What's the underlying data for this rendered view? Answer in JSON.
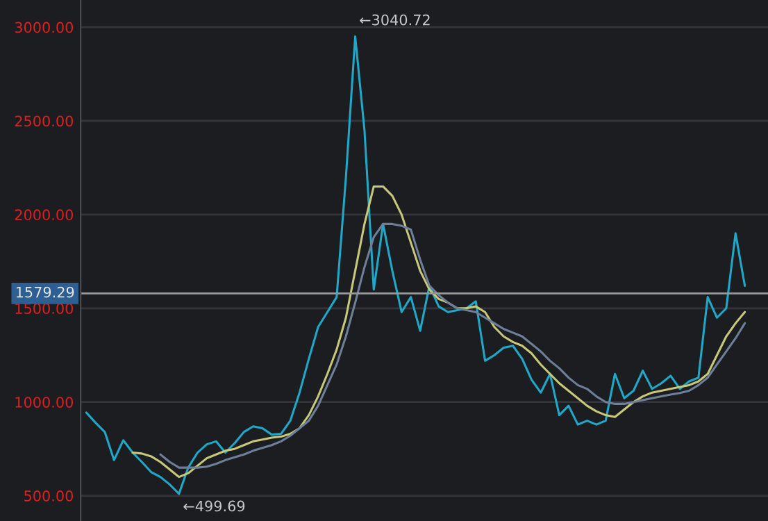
{
  "chart_data": {
    "type": "line",
    "categories": [
      null,
      null,
      null,
      null,
      null,
      null,
      null,
      null,
      null,
      null,
      null,
      null,
      null,
      null,
      null,
      null,
      null,
      null,
      null,
      null,
      null,
      null,
      null,
      null,
      null,
      null,
      null,
      null,
      null,
      null,
      null,
      null,
      null,
      null,
      null,
      null,
      null,
      null,
      null,
      null,
      null,
      null,
      null,
      null,
      null,
      null,
      null,
      null,
      null,
      null,
      null,
      null,
      null,
      null,
      null,
      null,
      null,
      null,
      null,
      null,
      null,
      null,
      null,
      null,
      null,
      null,
      null,
      null,
      null,
      null,
      null,
      null
    ],
    "series": [
      {
        "color": "#1fa8c8",
        "values": [
          944,
          890,
          840,
          690,
          796,
          730,
          680,
          626,
          600,
          560,
          510,
          650,
          730,
          774,
          790,
          730,
          780,
          840,
          870,
          860,
          826,
          830,
          900,
          1050,
          1230,
          1400,
          1480,
          1560,
          2200,
          2950,
          2450,
          1600,
          1950,
          1700,
          1480,
          1560,
          1380,
          1620,
          1510,
          1480,
          1490,
          1500,
          1537,
          1220,
          1250,
          1290,
          1300,
          1230,
          1120,
          1050,
          1150,
          930,
          980,
          880,
          900,
          880,
          900,
          1150,
          1020,
          1060,
          1167,
          1070,
          1100,
          1140,
          1070,
          1110,
          1130,
          1560,
          1450,
          1500,
          1900,
          1620
        ]
      },
      {
        "color": "#c8c87a",
        "values": [
          null,
          null,
          null,
          null,
          null,
          730,
          725,
          710,
          680,
          640,
          600,
          620,
          660,
          700,
          720,
          740,
          750,
          770,
          790,
          800,
          810,
          815,
          830,
          860,
          930,
          1030,
          1150,
          1280,
          1450,
          1700,
          1950,
          2150,
          2150,
          2100,
          2000,
          1850,
          1700,
          1600,
          1550,
          1530,
          1500,
          1500,
          1510,
          1480,
          1400,
          1350,
          1320,
          1300,
          1260,
          1200,
          1150,
          1100,
          1060,
          1020,
          980,
          950,
          930,
          920,
          960,
          1000,
          1030,
          1050,
          1060,
          1070,
          1080,
          1090,
          1110,
          1150,
          1250,
          1350,
          1420,
          1480
        ]
      },
      {
        "color": "#6d7f99",
        "values": [
          null,
          null,
          null,
          null,
          null,
          null,
          null,
          null,
          720,
          680,
          650,
          650,
          650,
          655,
          670,
          690,
          705,
          720,
          740,
          755,
          770,
          790,
          820,
          860,
          900,
          980,
          1090,
          1200,
          1350,
          1530,
          1720,
          1880,
          1950,
          1950,
          1940,
          1920,
          1760,
          1620,
          1570,
          1530,
          1500,
          1490,
          1480,
          1450,
          1420,
          1390,
          1370,
          1350,
          1310,
          1270,
          1220,
          1180,
          1130,
          1090,
          1070,
          1030,
          1000,
          990,
          990,
          1000,
          1010,
          1020,
          1030,
          1040,
          1048,
          1060,
          1090,
          1130,
          1200,
          1270,
          1340,
          1420
        ]
      }
    ],
    "ylim": [
      365,
      3145
    ],
    "yticks": [
      {
        "value": 500,
        "label": "500.00"
      },
      {
        "value": 1000,
        "label": "1000.00"
      },
      {
        "value": 1500,
        "label": "1500.00"
      },
      {
        "value": 2000,
        "label": "2000.00"
      },
      {
        "value": 2500,
        "label": "2500.00"
      },
      {
        "value": 3000,
        "label": "3000.00"
      }
    ],
    "ref_lines": [
      {
        "axis": "y",
        "value": 1579.29,
        "label": "1579.29",
        "color": "#9a9a9a"
      }
    ],
    "annotations": [
      "←3040.72",
      "←499.69"
    ],
    "grid": "y",
    "tick_labels": "y",
    "marker": "none",
    "line_style": "solid",
    "legend": false
  }
}
